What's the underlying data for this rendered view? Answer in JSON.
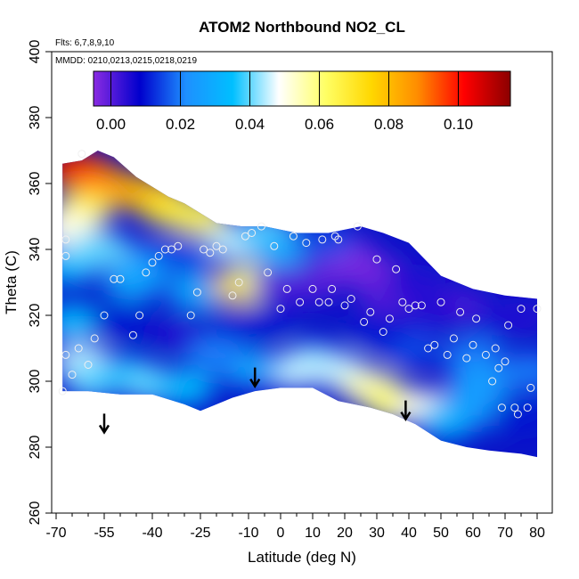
{
  "chart_data": {
    "type": "heatmap",
    "title": "ATOM2 Northbound NO2_CL",
    "annotations": [
      "Flts: 6,7,8,9,10",
      "MMDD: 0210,0213,0215,0218,0219"
    ],
    "xlabel": "Latitude (deg N)",
    "ylabel": "Theta (C)",
    "xlim": [
      -70,
      80
    ],
    "ylim": [
      260,
      400
    ],
    "x_ticks": [
      -70,
      -55,
      -40,
      -25,
      -10,
      0,
      10,
      20,
      30,
      40,
      50,
      60,
      70,
      80
    ],
    "x_ticklabels": [
      "-70",
      "-55",
      "-40",
      "-25",
      "-10",
      "0",
      "10",
      "20",
      "30",
      "40",
      "50",
      "60",
      "70",
      "80"
    ],
    "x_minor_ticks": [
      -65,
      -60,
      -50,
      -45,
      -35,
      -30,
      -20,
      -15,
      -5,
      5,
      15,
      25,
      35,
      45,
      55,
      65,
      75
    ],
    "y_ticks": [
      260,
      280,
      300,
      320,
      340,
      360,
      380,
      400
    ],
    "y_ticklabels": [
      "260",
      "280",
      "300",
      "320",
      "340",
      "360",
      "380",
      "400"
    ],
    "colorbar": {
      "range": [
        -0.005,
        0.115
      ],
      "ticks": [
        0.0,
        0.02,
        0.04,
        0.06,
        0.08,
        0.1
      ],
      "ticklabels": [
        "0.00",
        "0.02",
        "0.04",
        "0.06",
        "0.08",
        "0.10"
      ],
      "colors": [
        "#8a2be2",
        "#0000cd",
        "#1e90ff",
        "#00bfff",
        "#ffffff",
        "#ffff66",
        "#ffd700",
        "#ff8c00",
        "#ff0000",
        "#8b0000"
      ],
      "position": "top-inside"
    },
    "field": {
      "description_free": true,
      "upper_boundary": [
        [
          -68,
          366
        ],
        [
          -62,
          367
        ],
        [
          -57,
          370
        ],
        [
          -52,
          368
        ],
        [
          -45,
          362
        ],
        [
          -35,
          356
        ],
        [
          -30,
          354
        ],
        [
          -20,
          348
        ],
        [
          -12,
          347
        ],
        [
          -5,
          347
        ],
        [
          5,
          345
        ],
        [
          15,
          345
        ],
        [
          25,
          347
        ],
        [
          32,
          345
        ],
        [
          40,
          342
        ],
        [
          50,
          332
        ],
        [
          60,
          328
        ],
        [
          70,
          326
        ],
        [
          80,
          325
        ]
      ],
      "lower_boundary": [
        [
          -68,
          297
        ],
        [
          -60,
          297
        ],
        [
          -50,
          296
        ],
        [
          -40,
          296
        ],
        [
          -30,
          293
        ],
        [
          -25,
          291
        ],
        [
          -15,
          295
        ],
        [
          -8,
          297
        ],
        [
          0,
          298
        ],
        [
          10,
          298
        ],
        [
          18,
          294
        ],
        [
          28,
          292
        ],
        [
          35,
          290
        ],
        [
          42,
          287
        ],
        [
          50,
          282
        ],
        [
          58,
          280
        ],
        [
          65,
          279
        ],
        [
          75,
          278
        ],
        [
          80,
          277
        ]
      ],
      "cells": [
        {
          "lat": -66,
          "theta": 365,
          "value": 0.11
        },
        {
          "lat": -60,
          "theta": 363,
          "value": 0.1
        },
        {
          "lat": -56,
          "theta": 359,
          "value": 0.09
        },
        {
          "lat": -48,
          "theta": 358,
          "value": 0.085
        },
        {
          "lat": -40,
          "theta": 356,
          "value": 0.08
        },
        {
          "lat": -34,
          "theta": 352,
          "value": 0.07
        },
        {
          "lat": -26,
          "theta": 350,
          "value": 0.065
        },
        {
          "lat": -62,
          "theta": 352,
          "value": 0.065
        },
        {
          "lat": -66,
          "theta": 346,
          "value": 0.05
        },
        {
          "lat": -14,
          "theta": 342,
          "value": 0.045
        },
        {
          "lat": -5,
          "theta": 345,
          "value": 0.04
        },
        {
          "lat": -66,
          "theta": 335,
          "value": 0.035
        },
        {
          "lat": -64,
          "theta": 318,
          "value": 0.035
        },
        {
          "lat": -62,
          "theta": 306,
          "value": 0.045
        },
        {
          "lat": -58,
          "theta": 300,
          "value": 0.04
        },
        {
          "lat": -48,
          "theta": 302,
          "value": 0.035
        },
        {
          "lat": -40,
          "theta": 299,
          "value": 0.04
        },
        {
          "lat": -30,
          "theta": 298,
          "value": 0.035
        },
        {
          "lat": -50,
          "theta": 318,
          "value": 0.01
        },
        {
          "lat": -46,
          "theta": 330,
          "value": 0.03
        },
        {
          "lat": -40,
          "theta": 336,
          "value": 0.025
        },
        {
          "lat": -30,
          "theta": 338,
          "value": 0.015
        },
        {
          "lat": -26,
          "theta": 327,
          "value": 0.03
        },
        {
          "lat": -12,
          "theta": 329,
          "value": 0.08
        },
        {
          "lat": -8,
          "theta": 330,
          "value": 0.06
        },
        {
          "lat": -30,
          "theta": 314,
          "value": 0.005
        },
        {
          "lat": -15,
          "theta": 316,
          "value": 0.01
        },
        {
          "lat": -5,
          "theta": 318,
          "value": 0.01
        },
        {
          "lat": 0,
          "theta": 330,
          "value": 0.0
        },
        {
          "lat": 10,
          "theta": 330,
          "value": 0.0
        },
        {
          "lat": 20,
          "theta": 338,
          "value": -0.005
        },
        {
          "lat": 28,
          "theta": 333,
          "value": -0.003
        },
        {
          "lat": 34,
          "theta": 326,
          "value": 0.0
        },
        {
          "lat": 42,
          "theta": 330,
          "value": 0.005
        },
        {
          "lat": 55,
          "theta": 322,
          "value": 0.0
        },
        {
          "lat": 68,
          "theta": 318,
          "value": 0.01
        },
        {
          "lat": 75,
          "theta": 320,
          "value": 0.005
        },
        {
          "lat": 78,
          "theta": 303,
          "value": 0.02
        },
        {
          "lat": 10,
          "theta": 306,
          "value": 0.04
        },
        {
          "lat": 4,
          "theta": 303,
          "value": 0.045
        },
        {
          "lat": 18,
          "theta": 303,
          "value": 0.045
        },
        {
          "lat": 28,
          "theta": 298,
          "value": 0.055
        },
        {
          "lat": 36,
          "theta": 293,
          "value": 0.062
        },
        {
          "lat": 45,
          "theta": 292,
          "value": 0.05
        },
        {
          "lat": 52,
          "theta": 288,
          "value": 0.035
        },
        {
          "lat": 58,
          "theta": 292,
          "value": 0.03
        },
        {
          "lat": 65,
          "theta": 292,
          "value": 0.025
        },
        {
          "lat": 75,
          "theta": 290,
          "value": 0.01
        },
        {
          "lat": -10,
          "theta": 304,
          "value": 0.03
        },
        {
          "lat": -20,
          "theta": 308,
          "value": 0.02
        },
        {
          "lat": 40,
          "theta": 310,
          "value": 0.015
        },
        {
          "lat": 60,
          "theta": 308,
          "value": 0.02
        },
        {
          "lat": 48,
          "theta": 320,
          "value": 0.005
        },
        {
          "lat": 62,
          "theta": 300,
          "value": 0.025
        },
        {
          "lat": 30,
          "theta": 315,
          "value": 0.01
        },
        {
          "lat": -56,
          "theta": 340,
          "value": 0.04
        },
        {
          "lat": 0,
          "theta": 340,
          "value": 0.03
        },
        {
          "lat": 14,
          "theta": 342,
          "value": 0.015
        }
      ],
      "observations": [
        [
          -67,
          343
        ],
        [
          -67,
          338
        ],
        [
          -68,
          297
        ],
        [
          -67,
          308
        ],
        [
          -65,
          302
        ],
        [
          -63,
          310
        ],
        [
          -60,
          305
        ],
        [
          -58,
          313
        ],
        [
          -55,
          320
        ],
        [
          -52,
          331
        ],
        [
          -50,
          331
        ],
        [
          -46,
          314
        ],
        [
          -44,
          320
        ],
        [
          -42,
          333
        ],
        [
          -40,
          336
        ],
        [
          -38,
          338
        ],
        [
          -36,
          340
        ],
        [
          -34,
          340
        ],
        [
          -32,
          341
        ],
        [
          -28,
          320
        ],
        [
          -26,
          327
        ],
        [
          -24,
          340
        ],
        [
          -22,
          339
        ],
        [
          -20,
          341
        ],
        [
          -18,
          340
        ],
        [
          -15,
          326
        ],
        [
          -13,
          330
        ],
        [
          -11,
          344
        ],
        [
          -9,
          345
        ],
        [
          -6,
          347
        ],
        [
          -4,
          333
        ],
        [
          -2,
          341
        ],
        [
          0,
          322
        ],
        [
          2,
          328
        ],
        [
          4,
          344
        ],
        [
          6,
          324
        ],
        [
          8,
          342
        ],
        [
          10,
          328
        ],
        [
          12,
          324
        ],
        [
          13,
          343
        ],
        [
          15,
          324
        ],
        [
          16,
          328
        ],
        [
          17,
          344
        ],
        [
          18,
          343
        ],
        [
          20,
          323
        ],
        [
          22,
          325
        ],
        [
          24,
          347
        ],
        [
          26,
          318
        ],
        [
          28,
          321
        ],
        [
          30,
          337
        ],
        [
          32,
          315
        ],
        [
          34,
          319
        ],
        [
          36,
          334
        ],
        [
          38,
          324
        ],
        [
          40,
          322
        ],
        [
          42,
          323
        ],
        [
          44,
          323
        ],
        [
          46,
          310
        ],
        [
          48,
          311
        ],
        [
          50,
          324
        ],
        [
          52,
          308
        ],
        [
          54,
          313
        ],
        [
          56,
          321
        ],
        [
          58,
          307
        ],
        [
          60,
          311
        ],
        [
          61,
          319
        ],
        [
          64,
          308
        ],
        [
          66,
          300
        ],
        [
          67,
          310
        ],
        [
          68,
          304
        ],
        [
          69,
          292
        ],
        [
          70,
          306
        ],
        [
          71,
          317
        ],
        [
          73,
          292
        ],
        [
          74,
          290
        ],
        [
          75,
          322
        ],
        [
          77,
          292
        ],
        [
          78,
          298
        ],
        [
          80,
          322
        ],
        [
          -62,
          369
        ]
      ],
      "arrows": [
        {
          "lat": -55,
          "theta": 288
        },
        {
          "lat": -8,
          "theta": 302
        },
        {
          "lat": 39,
          "theta": 292
        }
      ]
    }
  }
}
